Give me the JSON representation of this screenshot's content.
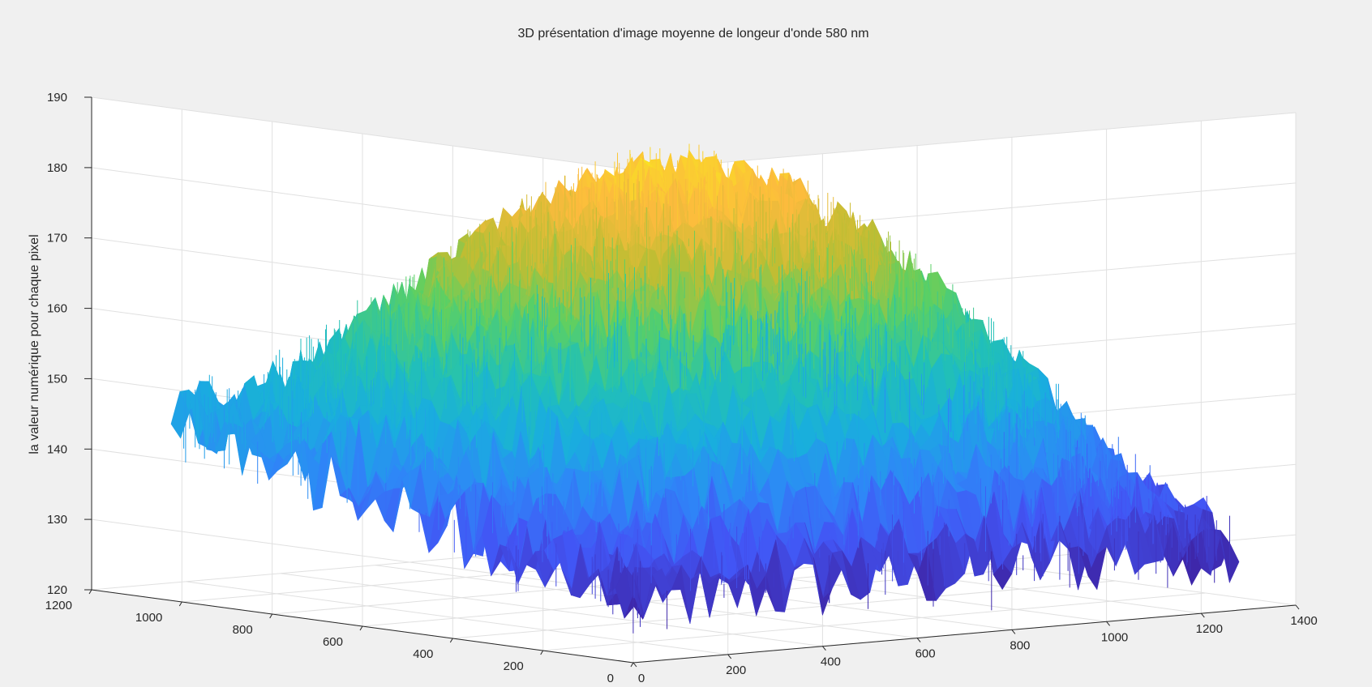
{
  "chart_data": {
    "type": "surface",
    "title": "3D présentation d'image moyenne de longeur d'onde 580 nm",
    "xlabel": "",
    "ylabel": "",
    "zlabel": "la valeur numérique pour chaque pixel",
    "xlim": [
      0,
      1400
    ],
    "ylim": [
      0,
      1200
    ],
    "zlim": [
      120,
      190
    ],
    "x_ticks": [
      "0",
      "200",
      "400",
      "600",
      "800",
      "1000",
      "1200",
      "1400"
    ],
    "y_ticks": [
      "0",
      "200",
      "400",
      "600",
      "800",
      "1000",
      "1200"
    ],
    "z_ticks": [
      "120",
      "130",
      "140",
      "150",
      "160",
      "170",
      "180",
      "190"
    ],
    "grid": true,
    "colormap": "parula",
    "colormap_stops": [
      "#3e26a8",
      "#4255f5",
      "#2e87f7",
      "#19aede",
      "#22c1b4",
      "#5bd063",
      "#bfbd33",
      "#fcbb3d",
      "#f9e91e"
    ],
    "surface": {
      "x_range": [
        0,
        1280
      ],
      "y_range": [
        0,
        1024
      ],
      "peak": {
        "x": 640,
        "y": 512,
        "z": 180
      },
      "corner_values": {
        "x0_y0": 128,
        "x1280_y0": 129,
        "x0_y1024": 146,
        "x1280_y1024": 148
      },
      "noise_amplitude": 5
    }
  }
}
